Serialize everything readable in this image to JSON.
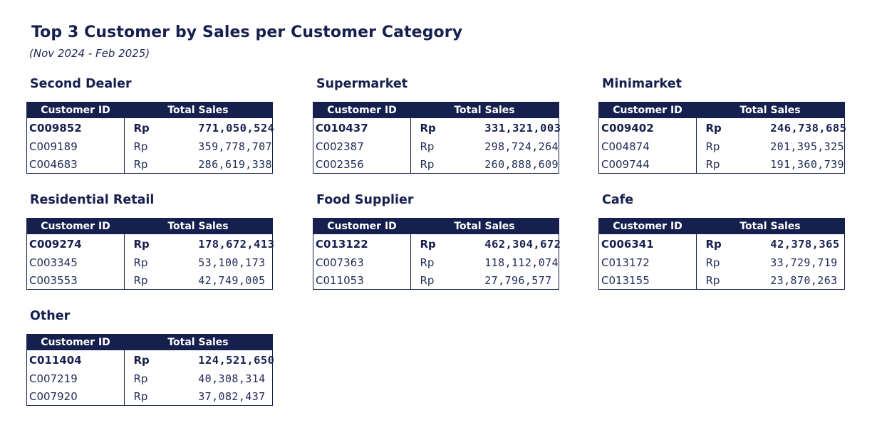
{
  "page": {
    "title": "Top 3 Customer by Sales per Customer Category",
    "subtitle": "(Nov 2024 - Feb 2025)"
  },
  "columns": {
    "customer_id": "Customer ID",
    "total_sales": "Total Sales"
  },
  "currency": "Rp",
  "categories": [
    {
      "name": "Second Dealer",
      "rows": [
        {
          "id": "C009852",
          "currency": "Rp",
          "amount": "771,050,524"
        },
        {
          "id": "C009189",
          "currency": "Rp",
          "amount": "359,778,707"
        },
        {
          "id": "C004683",
          "currency": "Rp",
          "amount": "286,619,338"
        }
      ]
    },
    {
      "name": "Supermarket",
      "rows": [
        {
          "id": "C010437",
          "currency": "Rp",
          "amount": "331,321,003"
        },
        {
          "id": "C002387",
          "currency": "Rp",
          "amount": "298,724,264"
        },
        {
          "id": "C002356",
          "currency": "Rp",
          "amount": "260,888,609"
        }
      ]
    },
    {
      "name": "Minimarket",
      "rows": [
        {
          "id": "C009402",
          "currency": "Rp",
          "amount": "246,738,685"
        },
        {
          "id": "C004874",
          "currency": "Rp",
          "amount": "201,395,325"
        },
        {
          "id": "C009744",
          "currency": "Rp",
          "amount": "191,360,739"
        }
      ]
    },
    {
      "name": "Residential Retail",
      "rows": [
        {
          "id": "C009274",
          "currency": "Rp",
          "amount": "178,672,413"
        },
        {
          "id": "C003345",
          "currency": "Rp",
          "amount": "53,100,173"
        },
        {
          "id": "C003553",
          "currency": "Rp",
          "amount": "42,749,005"
        }
      ]
    },
    {
      "name": "Food Supplier",
      "rows": [
        {
          "id": "C013122",
          "currency": "Rp",
          "amount": "462,304,672"
        },
        {
          "id": "C007363",
          "currency": "Rp",
          "amount": "118,112,074"
        },
        {
          "id": "C011053",
          "currency": "Rp",
          "amount": "27,796,577"
        }
      ]
    },
    {
      "name": "Cafe",
      "rows": [
        {
          "id": "C006341",
          "currency": "Rp",
          "amount": "42,378,365"
        },
        {
          "id": "C013172",
          "currency": "Rp",
          "amount": "33,729,719"
        },
        {
          "id": "C013155",
          "currency": "Rp",
          "amount": "23,870,263"
        }
      ]
    },
    {
      "name": "Other",
      "rows": [
        {
          "id": "C011404",
          "currency": "Rp",
          "amount": "124,521,650"
        },
        {
          "id": "C007219",
          "currency": "Rp",
          "amount": "40,308,314"
        },
        {
          "id": "C007920",
          "currency": "Rp",
          "amount": "37,082,437"
        }
      ]
    }
  ],
  "colors": {
    "header_bg": "#16204f",
    "header_text": "#ffffff",
    "body_text": "#1f2a55"
  }
}
